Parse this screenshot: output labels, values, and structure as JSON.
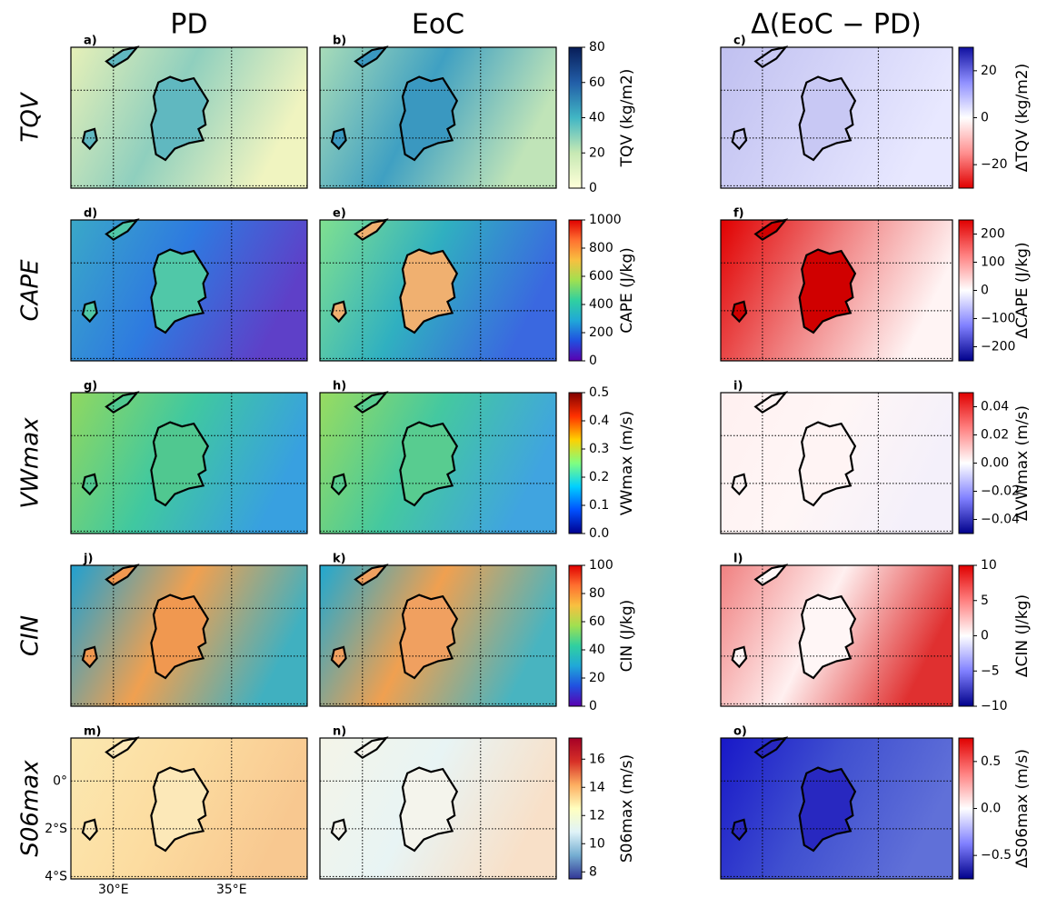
{
  "figure": {
    "columns": [
      "PD",
      "EoC",
      "Δ(EoC − PD)"
    ],
    "rows": [
      {
        "label": "TQV",
        "panels": [
          "a)",
          "b)",
          "c)"
        ],
        "colorbar": {
          "label": "TQV (kg/m2)",
          "lim": [
            0,
            80
          ],
          "ticks": [
            0,
            20,
            40,
            60,
            80
          ]
        },
        "delta_colorbar": {
          "label": "ΔTQV (kg/m2)",
          "lim": [
            -30,
            30
          ],
          "ticks": [
            {
              "value": -20,
              "label": "−20"
            },
            0,
            20
          ]
        }
      },
      {
        "label": "CAPE",
        "panels": [
          "d)",
          "e)",
          "f)"
        ],
        "colorbar": {
          "label": "CAPE (J/kg)",
          "lim": [
            0,
            1000
          ],
          "ticks": [
            0,
            200,
            400,
            600,
            800,
            1000
          ]
        },
        "delta_colorbar": {
          "label": "ΔCAPE (J/kg)",
          "lim": [
            -250,
            250
          ],
          "ticks": [
            {
              "value": -200,
              "label": "−200"
            },
            {
              "value": -100,
              "label": "−100"
            },
            0,
            100,
            200
          ]
        }
      },
      {
        "label": "VWmax",
        "panels": [
          "g)",
          "h)",
          "i)"
        ],
        "colorbar": {
          "label": "VWmax (m/s)",
          "lim": [
            0,
            0.5
          ],
          "ticks": [
            {
              "value": 0,
              "label": "0.0"
            },
            0.1,
            0.2,
            0.3,
            0.4,
            0.5
          ]
        },
        "delta_colorbar": {
          "label": "ΔVWmax (m/s)",
          "lim": [
            -0.05,
            0.05
          ],
          "ticks": [
            {
              "value": -0.04,
              "label": "−0.04"
            },
            {
              "value": -0.02,
              "label": "−0.02"
            },
            {
              "value": 0,
              "label": "0.00"
            },
            0.02,
            0.04
          ]
        }
      },
      {
        "label": "CIN",
        "panels": [
          "j)",
          "k)",
          "l)"
        ],
        "colorbar": {
          "label": "CIN (J/kg)",
          "lim": [
            0,
            100
          ],
          "ticks": [
            0,
            20,
            40,
            60,
            80,
            100
          ]
        },
        "delta_colorbar": {
          "label": "ΔCIN (J/kg)",
          "lim": [
            -10,
            10
          ],
          "ticks": [
            {
              "value": -10,
              "label": "−10"
            },
            {
              "value": -5,
              "label": "−5"
            },
            0,
            5,
            10
          ]
        }
      },
      {
        "label": "S06max",
        "panels": [
          "m)",
          "n)",
          "o)"
        ],
        "colorbar": {
          "label": "S06max (m/s)",
          "lim": [
            7.5,
            17.5
          ],
          "ticks": [
            8,
            10,
            12,
            14,
            16
          ]
        },
        "delta_colorbar": {
          "label": "ΔS06max (m/s)",
          "lim": [
            -0.75,
            0.75
          ],
          "ticks": [
            {
              "value": -0.5,
              "label": "−0.5"
            },
            {
              "value": 0,
              "label": "0.0"
            },
            0.5
          ]
        }
      }
    ],
    "map": {
      "xlim": [
        28.2,
        38.2
      ],
      "ylim": [
        -4.1,
        1.8
      ],
      "xticks": [
        {
          "value": 30,
          "label": "30°E"
        },
        {
          "value": 35,
          "label": "35°E"
        }
      ],
      "yticks": [
        {
          "value": 0,
          "label": "0°"
        },
        {
          "value": -2,
          "label": "2°S"
        },
        {
          "value": -4,
          "label": "4°S"
        }
      ]
    }
  }
}
